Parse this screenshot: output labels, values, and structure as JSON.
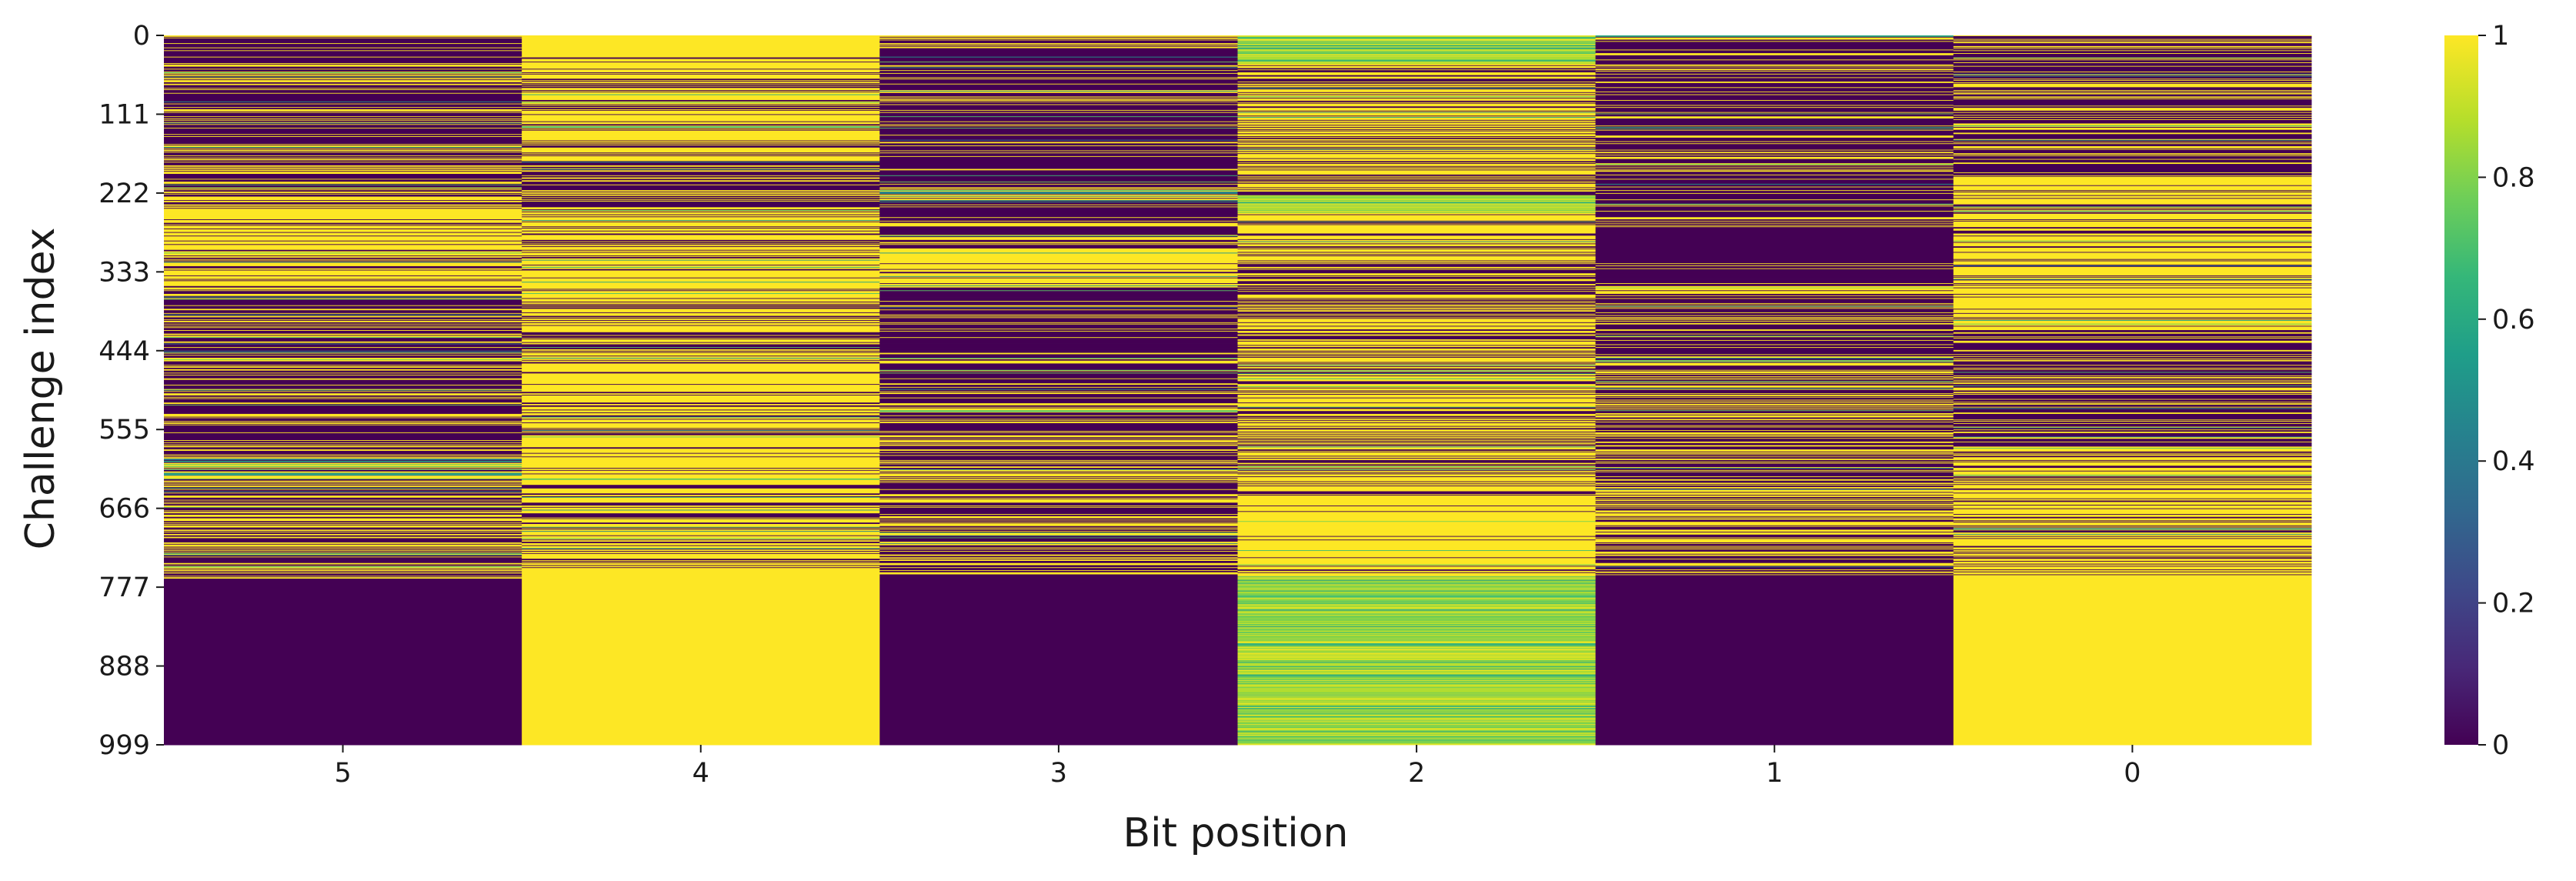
{
  "chart_data": {
    "type": "heatmap",
    "title": "",
    "xlabel": "Bit position",
    "ylabel": "Challenge index",
    "x_categories": [
      "5",
      "4",
      "3",
      "2",
      "1",
      "0"
    ],
    "y_ticks": [
      "0",
      "111",
      "222",
      "333",
      "444",
      "555",
      "666",
      "777",
      "888",
      "999"
    ],
    "y_range": [
      0,
      999
    ],
    "colormap": "viridis",
    "colorbar": {
      "min": 0,
      "max": 1,
      "ticks": [
        "0",
        "0.2",
        "0.4",
        "0.6",
        "0.8",
        "1"
      ]
    },
    "colors": [
      "#440154",
      "#482878",
      "#3e4989",
      "#31688e",
      "#26828e",
      "#1f9e89",
      "#35b779",
      "#6ece58",
      "#b5de2b",
      "#fde725"
    ],
    "columns": [
      {
        "bit": "5",
        "segments": [
          {
            "from": 0,
            "to": 222,
            "pattern": "mixed",
            "density": 0.35
          },
          {
            "from": 222,
            "to": 372,
            "pattern": "mixed",
            "density": 0.7
          },
          {
            "from": 372,
            "to": 590,
            "pattern": "mixed",
            "density": 0.3
          },
          {
            "from": 590,
            "to": 620,
            "pattern": "mixed-teal",
            "density": 0.5
          },
          {
            "from": 620,
            "to": 765,
            "pattern": "mixed",
            "density": 0.45
          },
          {
            "from": 765,
            "to": 999,
            "pattern": "solid",
            "value": 0
          }
        ]
      },
      {
        "bit": "4",
        "segments": [
          {
            "from": 0,
            "to": 30,
            "pattern": "solid",
            "value": 1
          },
          {
            "from": 30,
            "to": 175,
            "pattern": "mixed",
            "density": 0.75
          },
          {
            "from": 175,
            "to": 255,
            "pattern": "mixed",
            "density": 0.35
          },
          {
            "from": 255,
            "to": 752,
            "pattern": "mixed",
            "density": 0.72
          },
          {
            "from": 752,
            "to": 999,
            "pattern": "solid",
            "value": 1
          }
        ]
      },
      {
        "bit": "3",
        "segments": [
          {
            "from": 0,
            "to": 215,
            "pattern": "mixed",
            "density": 0.15
          },
          {
            "from": 215,
            "to": 235,
            "pattern": "mixed-teal",
            "density": 0.5
          },
          {
            "from": 235,
            "to": 300,
            "pattern": "mixed",
            "density": 0.3
          },
          {
            "from": 300,
            "to": 355,
            "pattern": "mixed",
            "density": 0.85
          },
          {
            "from": 355,
            "to": 520,
            "pattern": "mixed",
            "density": 0.2
          },
          {
            "from": 520,
            "to": 760,
            "pattern": "mixed",
            "density": 0.45
          },
          {
            "from": 760,
            "to": 999,
            "pattern": "solid",
            "value": 0
          }
        ]
      },
      {
        "bit": "2",
        "segments": [
          {
            "from": 0,
            "to": 40,
            "pattern": "green",
            "density": 0.9
          },
          {
            "from": 40,
            "to": 225,
            "pattern": "mixed",
            "density": 0.65
          },
          {
            "from": 225,
            "to": 250,
            "pattern": "green",
            "density": 0.8
          },
          {
            "from": 250,
            "to": 320,
            "pattern": "mixed",
            "density": 0.8
          },
          {
            "from": 320,
            "to": 480,
            "pattern": "mixed",
            "density": 0.55
          },
          {
            "from": 480,
            "to": 650,
            "pattern": "mixed",
            "density": 0.7
          },
          {
            "from": 650,
            "to": 760,
            "pattern": "mixed",
            "density": 0.85
          },
          {
            "from": 760,
            "to": 999,
            "pattern": "green",
            "density": 0.85
          }
        ]
      },
      {
        "bit": "1",
        "segments": [
          {
            "from": 0,
            "to": 270,
            "pattern": "mixed",
            "density": 0.25
          },
          {
            "from": 270,
            "to": 320,
            "pattern": "solid",
            "value": 0
          },
          {
            "from": 320,
            "to": 450,
            "pattern": "mixed",
            "density": 0.3
          },
          {
            "from": 450,
            "to": 465,
            "pattern": "mixed-teal",
            "density": 0.6
          },
          {
            "from": 465,
            "to": 560,
            "pattern": "mixed",
            "density": 0.45
          },
          {
            "from": 560,
            "to": 620,
            "pattern": "mixed",
            "density": 0.35
          },
          {
            "from": 620,
            "to": 760,
            "pattern": "mixed",
            "density": 0.5
          },
          {
            "from": 760,
            "to": 999,
            "pattern": "solid",
            "value": 0
          }
        ]
      },
      {
        "bit": "0",
        "segments": [
          {
            "from": 0,
            "to": 200,
            "pattern": "mixed",
            "density": 0.3
          },
          {
            "from": 200,
            "to": 420,
            "pattern": "mixed",
            "density": 0.8
          },
          {
            "from": 420,
            "to": 580,
            "pattern": "mixed",
            "density": 0.3
          },
          {
            "from": 580,
            "to": 760,
            "pattern": "mixed",
            "density": 0.7
          },
          {
            "from": 760,
            "to": 999,
            "pattern": "solid",
            "value": 1
          }
        ]
      }
    ]
  }
}
